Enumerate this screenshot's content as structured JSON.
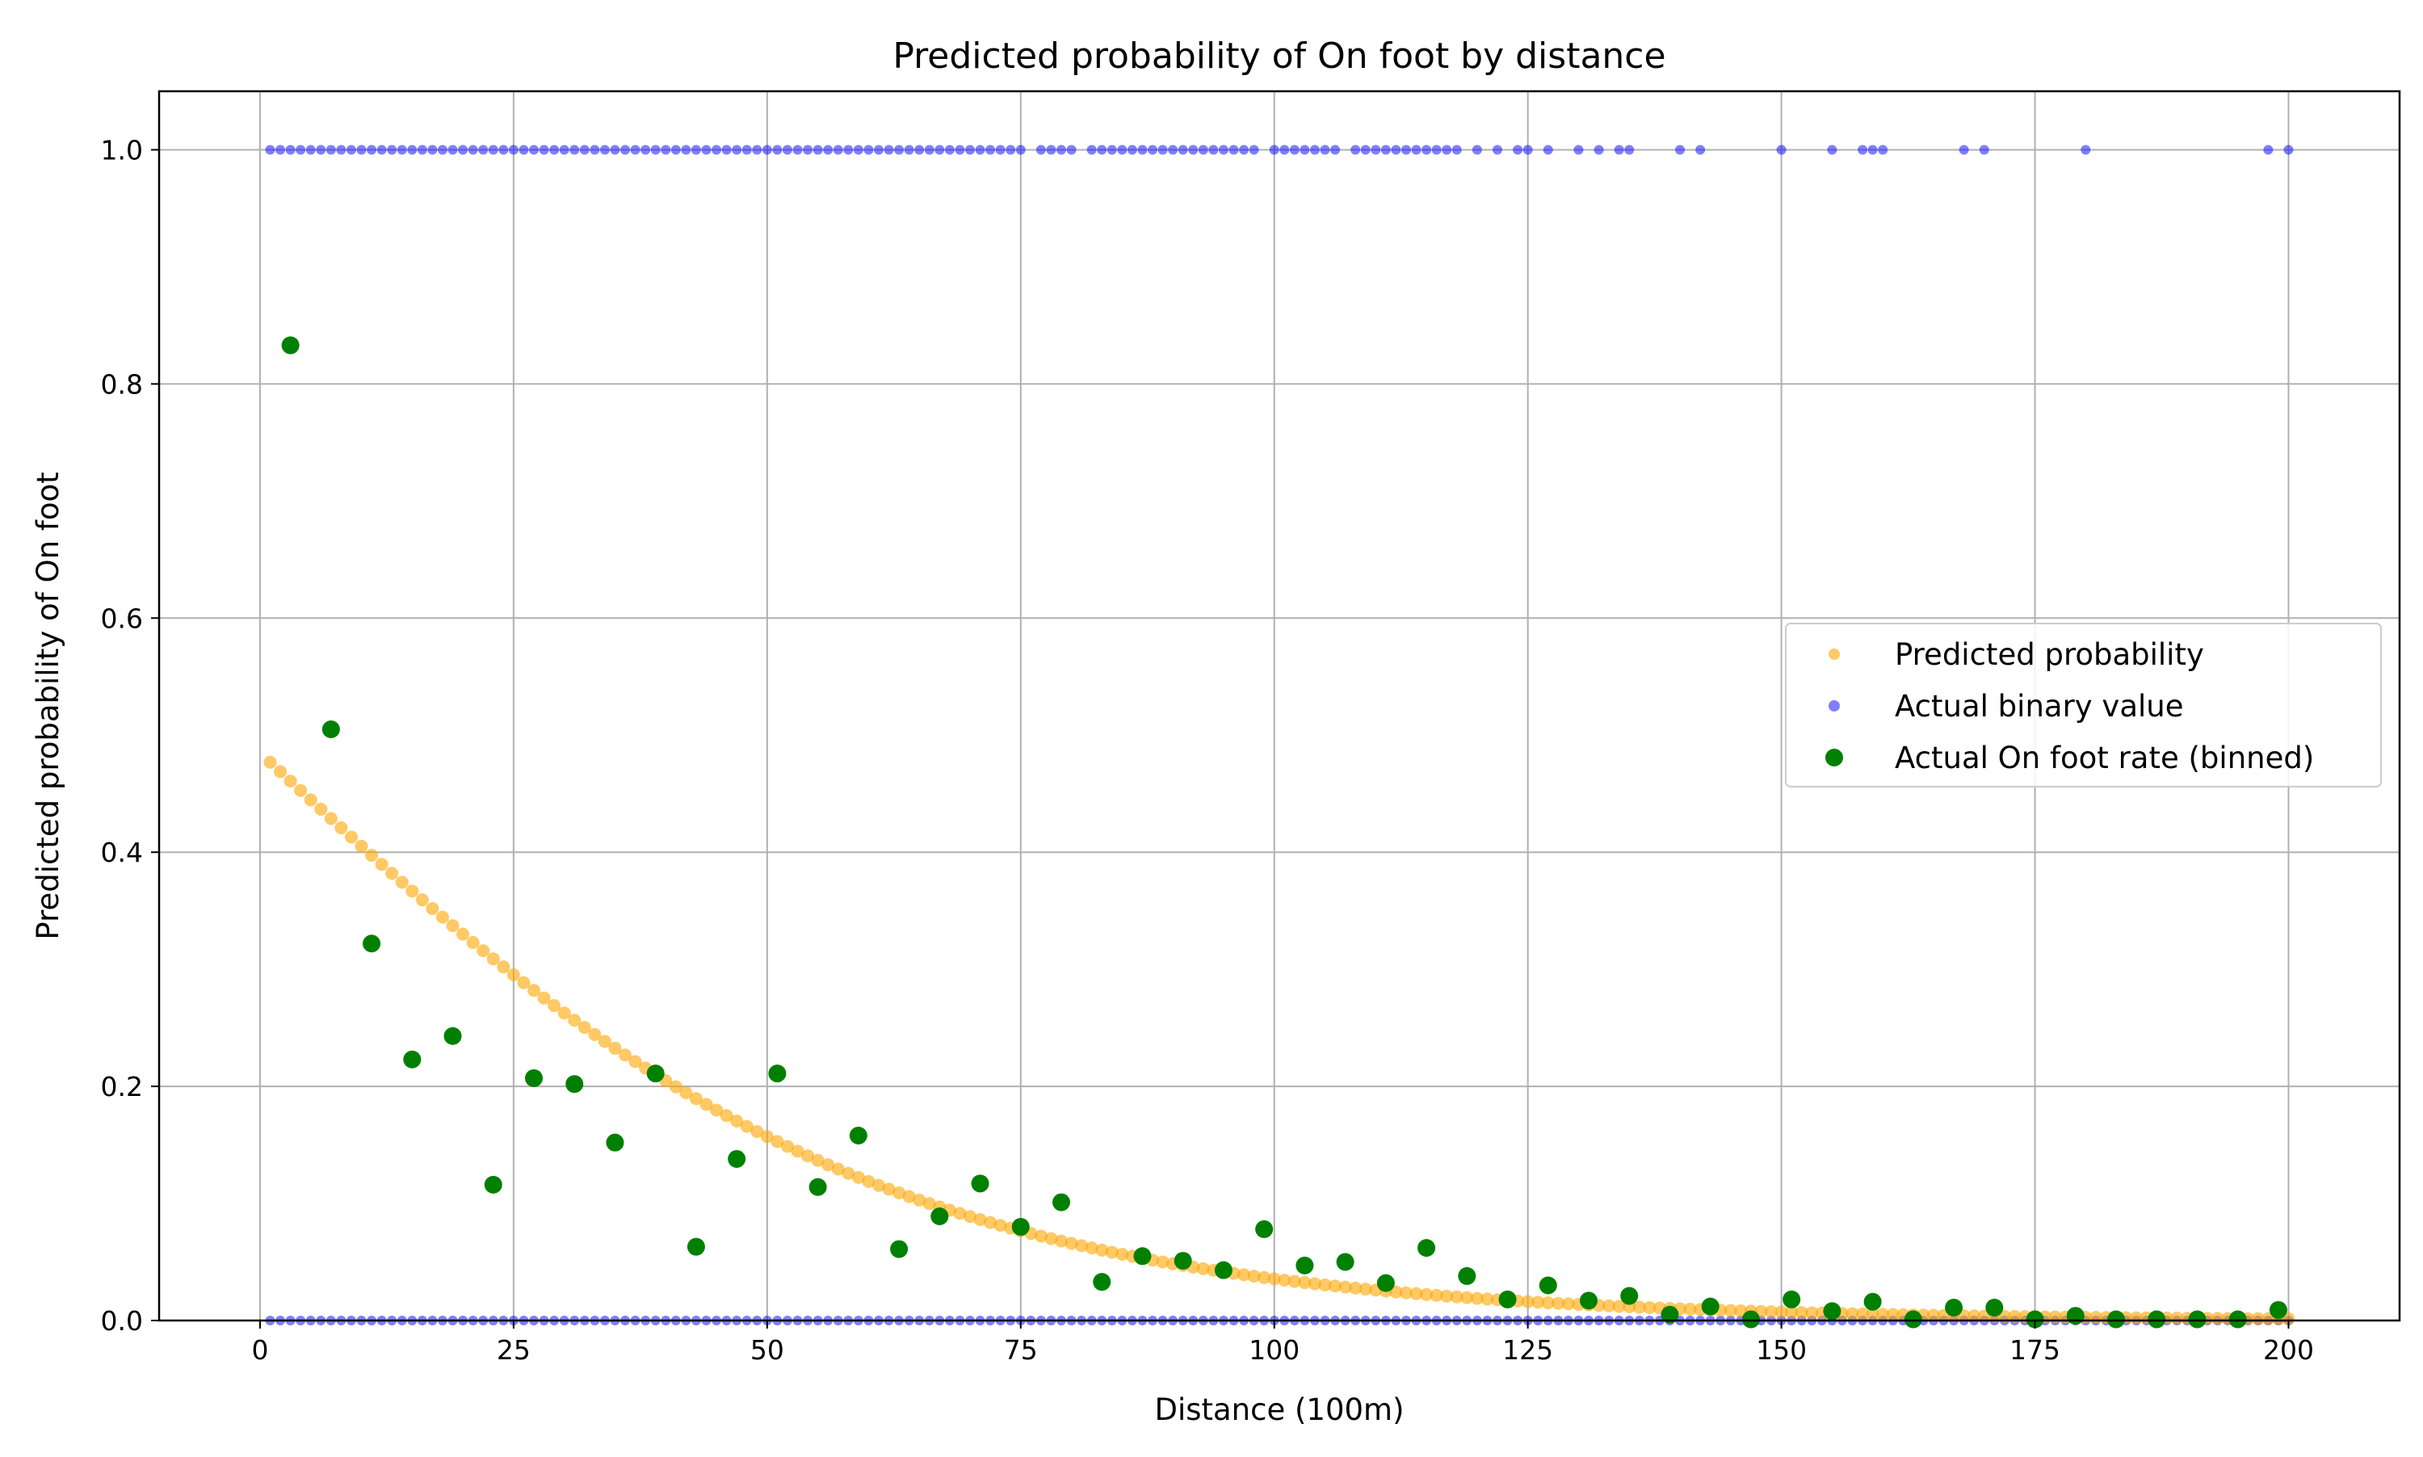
{
  "chart_data": {
    "type": "scatter",
    "title": "Predicted probability of On foot by distance",
    "xlabel": "Distance (100m)",
    "ylabel": "Predicted probability of On foot",
    "xlim": [
      -9.95,
      210.95
    ],
    "ylim": [
      0.0,
      1.05
    ],
    "xticks": [
      0,
      25,
      50,
      75,
      100,
      125,
      150,
      175,
      200
    ],
    "xtick_labels": [
      "0",
      "25",
      "50",
      "75",
      "100",
      "125",
      "150",
      "175",
      "200"
    ],
    "yticks": [
      0.0,
      0.2,
      0.4,
      0.6,
      0.8,
      1.0
    ],
    "ytick_labels": [
      "0.0",
      "0.2",
      "0.4",
      "0.6",
      "0.8",
      "1.0"
    ],
    "grid": true,
    "legend_position": "center-right",
    "series": [
      {
        "name": "Predicted probability",
        "color": "#ffa500",
        "alpha": 0.6,
        "marker": "small-dot",
        "curve": {
          "model": "logistic",
          "intercept": -0.06,
          "slope": -0.0324
        },
        "x_range": [
          1,
          200
        ]
      },
      {
        "name": "Actual binary value",
        "color": "#0000ff",
        "alpha": 0.5,
        "marker": "small-dot",
        "points_y1": [
          1,
          2,
          3,
          4,
          5,
          6,
          7,
          8,
          9,
          10,
          11,
          12,
          13,
          14,
          15,
          16,
          17,
          18,
          19,
          20,
          21,
          22,
          23,
          24,
          25,
          26,
          27,
          28,
          29,
          30,
          31,
          32,
          33,
          34,
          35,
          36,
          37,
          38,
          39,
          40,
          41,
          42,
          43,
          44,
          45,
          46,
          47,
          48,
          49,
          50,
          51,
          52,
          53,
          54,
          55,
          56,
          57,
          58,
          59,
          60,
          61,
          62,
          63,
          64,
          65,
          66,
          67,
          68,
          69,
          70,
          71,
          72,
          73,
          74,
          75,
          77,
          78,
          79,
          80,
          82,
          83,
          84,
          85,
          86,
          87,
          88,
          89,
          90,
          91,
          92,
          93,
          94,
          95,
          96,
          97,
          98,
          100,
          101,
          102,
          103,
          104,
          105,
          106,
          108,
          109,
          110,
          111,
          112,
          113,
          114,
          115,
          116,
          117,
          118,
          120,
          122,
          124,
          125,
          127,
          130,
          132,
          134,
          135,
          140,
          142,
          150,
          155,
          158,
          159,
          160,
          168,
          170,
          180,
          198,
          200
        ],
        "points_y0_range": [
          1,
          200
        ]
      },
      {
        "name": "Actual On foot rate (binned)",
        "color": "#008000",
        "marker": "dot",
        "points": [
          {
            "x": 3,
            "y": 0.833
          },
          {
            "x": 7,
            "y": 0.505
          },
          {
            "x": 11,
            "y": 0.322
          },
          {
            "x": 15,
            "y": 0.223
          },
          {
            "x": 19,
            "y": 0.243
          },
          {
            "x": 23,
            "y": 0.116
          },
          {
            "x": 27,
            "y": 0.207
          },
          {
            "x": 31,
            "y": 0.202
          },
          {
            "x": 35,
            "y": 0.152
          },
          {
            "x": 39,
            "y": 0.211
          },
          {
            "x": 43,
            "y": 0.063
          },
          {
            "x": 47,
            "y": 0.138
          },
          {
            "x": 51,
            "y": 0.211
          },
          {
            "x": 55,
            "y": 0.114
          },
          {
            "x": 59,
            "y": 0.158
          },
          {
            "x": 63,
            "y": 0.061
          },
          {
            "x": 67,
            "y": 0.089
          },
          {
            "x": 71,
            "y": 0.117
          },
          {
            "x": 75,
            "y": 0.08
          },
          {
            "x": 79,
            "y": 0.101
          },
          {
            "x": 83,
            "y": 0.033
          },
          {
            "x": 87,
            "y": 0.055
          },
          {
            "x": 91,
            "y": 0.051
          },
          {
            "x": 95,
            "y": 0.043
          },
          {
            "x": 99,
            "y": 0.078
          },
          {
            "x": 103,
            "y": 0.047
          },
          {
            "x": 107,
            "y": 0.05
          },
          {
            "x": 111,
            "y": 0.032
          },
          {
            "x": 115,
            "y": 0.062
          },
          {
            "x": 119,
            "y": 0.038
          },
          {
            "x": 123,
            "y": 0.018
          },
          {
            "x": 127,
            "y": 0.03
          },
          {
            "x": 131,
            "y": 0.017
          },
          {
            "x": 135,
            "y": 0.021
          },
          {
            "x": 139,
            "y": 0.005
          },
          {
            "x": 143,
            "y": 0.012
          },
          {
            "x": 147,
            "y": 0.001
          },
          {
            "x": 151,
            "y": 0.018
          },
          {
            "x": 155,
            "y": 0.008
          },
          {
            "x": 159,
            "y": 0.016
          },
          {
            "x": 163,
            "y": 0.001
          },
          {
            "x": 167,
            "y": 0.011
          },
          {
            "x": 171,
            "y": 0.011
          },
          {
            "x": 175,
            "y": 0.001
          },
          {
            "x": 179,
            "y": 0.004
          },
          {
            "x": 183,
            "y": 0.001
          },
          {
            "x": 187,
            "y": 0.001
          },
          {
            "x": 191,
            "y": 0.001
          },
          {
            "x": 195,
            "y": 0.001
          },
          {
            "x": 199,
            "y": 0.009
          }
        ]
      }
    ]
  }
}
